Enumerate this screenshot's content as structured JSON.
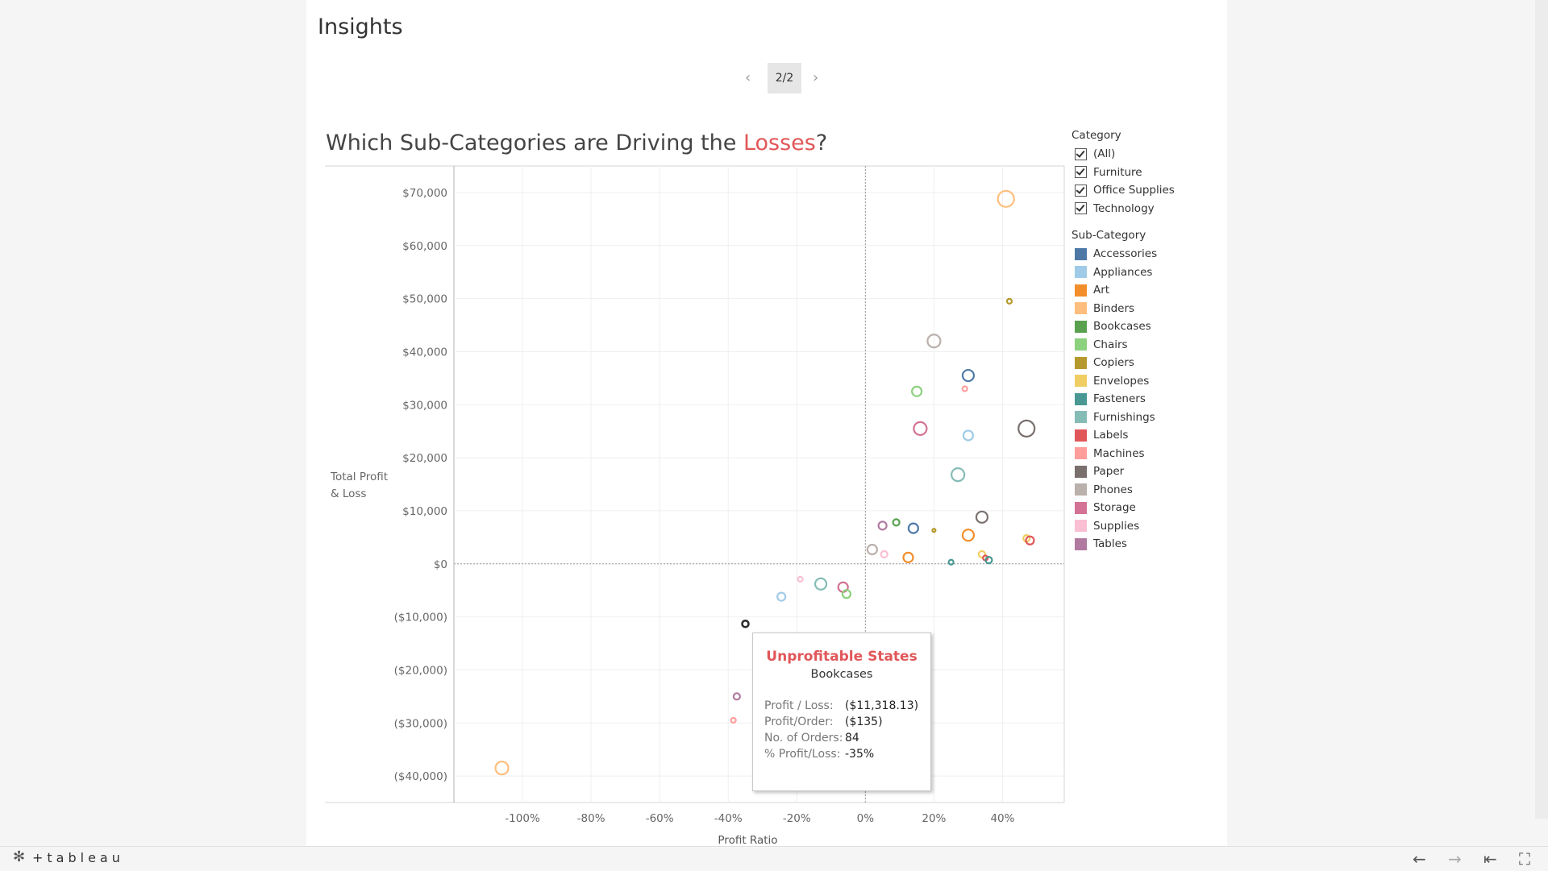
{
  "page_title": "Insights",
  "pager": {
    "prev_icon": "‹",
    "label": "2/2",
    "next_icon": "›"
  },
  "headline": {
    "prefix": "Which Sub-Categories are Driving the ",
    "highlight": "Losses",
    "suffix": "?"
  },
  "chart_data": {
    "type": "scatter",
    "xlabel": "Profit Ratio",
    "ylabel": [
      "Total Profit",
      "& Loss"
    ],
    "xlim": [
      -1.2,
      0.58
    ],
    "ylim": [
      -45000,
      75000
    ],
    "x_ticks": [
      -1.0,
      -0.8,
      -0.6,
      -0.4,
      -0.2,
      0,
      0.2,
      0.4
    ],
    "x_tick_labels": [
      "-100%",
      "-80%",
      "-60%",
      "-40%",
      "-20%",
      "0%",
      "20%",
      "40%"
    ],
    "y_ticks": [
      70000,
      60000,
      50000,
      40000,
      30000,
      20000,
      10000,
      0,
      -10000,
      -20000,
      -30000,
      -40000
    ],
    "y_tick_labels": [
      "$70,000",
      "$60,000",
      "$50,000",
      "$40,000",
      "$30,000",
      "$20,000",
      "$10,000",
      "$0",
      "($10,000)",
      "($20,000)",
      "($30,000)",
      "($40,000)"
    ],
    "points": [
      {
        "sub": "Binders",
        "x": 0.41,
        "y": 68800,
        "r": 10
      },
      {
        "sub": "Copiers",
        "x": 0.42,
        "y": 49500,
        "r": 3
      },
      {
        "sub": "Phones",
        "x": 0.2,
        "y": 42000,
        "r": 8
      },
      {
        "sub": "Accessories",
        "x": 0.3,
        "y": 35500,
        "r": 7
      },
      {
        "sub": "Machines",
        "x": 0.29,
        "y": 33000,
        "r": 3
      },
      {
        "sub": "Chairs",
        "x": 0.15,
        "y": 32500,
        "r": 6
      },
      {
        "sub": "Storage",
        "x": 0.16,
        "y": 25500,
        "r": 8
      },
      {
        "sub": "Paper",
        "x": 0.47,
        "y": 25500,
        "r": 10
      },
      {
        "sub": "Appliances",
        "x": 0.3,
        "y": 24200,
        "r": 6
      },
      {
        "sub": "Furnishings",
        "x": 0.27,
        "y": 16800,
        "r": 8
      },
      {
        "sub": "Paper",
        "x": 0.34,
        "y": 8800,
        "r": 7
      },
      {
        "sub": "Tables",
        "x": 0.05,
        "y": 7200,
        "r": 5
      },
      {
        "sub": "Bookcases",
        "x": 0.09,
        "y": 7800,
        "r": 4
      },
      {
        "sub": "Accessories",
        "x": 0.14,
        "y": 6700,
        "r": 6
      },
      {
        "sub": "Copiers",
        "x": 0.2,
        "y": 6300,
        "r": 2
      },
      {
        "sub": "Art",
        "x": 0.3,
        "y": 5400,
        "r": 7
      },
      {
        "sub": "Envelopes",
        "x": 0.47,
        "y": 4800,
        "r": 4
      },
      {
        "sub": "Labels",
        "x": 0.48,
        "y": 4400,
        "r": 5
      },
      {
        "sub": "Phones",
        "x": 0.02,
        "y": 2700,
        "r": 6
      },
      {
        "sub": "Supplies",
        "x": 0.055,
        "y": 1800,
        "r": 4
      },
      {
        "sub": "Art",
        "x": 0.125,
        "y": 1200,
        "r": 6
      },
      {
        "sub": "Envelopes",
        "x": 0.34,
        "y": 1800,
        "r": 4
      },
      {
        "sub": "Labels",
        "x": 0.35,
        "y": 1100,
        "r": 3
      },
      {
        "sub": "Fasteners",
        "x": 0.36,
        "y": 700,
        "r": 4
      },
      {
        "sub": "Fasteners",
        "x": 0.25,
        "y": 300,
        "r": 3
      },
      {
        "sub": "Supplies",
        "x": -0.19,
        "y": -2900,
        "r": 3
      },
      {
        "sub": "Furnishings",
        "x": -0.13,
        "y": -3800,
        "r": 7
      },
      {
        "sub": "Storage",
        "x": -0.065,
        "y": -4400,
        "r": 6
      },
      {
        "sub": "Chairs",
        "x": -0.055,
        "y": -5700,
        "r": 5
      },
      {
        "sub": "Appliances",
        "x": -0.245,
        "y": -6200,
        "r": 5
      },
      {
        "sub": "Bookcases",
        "x": -0.35,
        "y": -11318,
        "r": 4
      },
      {
        "sub": "Tables",
        "x": -0.375,
        "y": -25000,
        "r": 4
      },
      {
        "sub": "Machines",
        "x": -0.385,
        "y": -29500,
        "r": 3
      },
      {
        "sub": "Binders",
        "x": -1.06,
        "y": -38500,
        "r": 8
      }
    ]
  },
  "filters": {
    "category_title": "Category",
    "categories": [
      "(All)",
      "Furniture",
      "Office Supplies",
      "Technology"
    ],
    "subcategory_title": "Sub-Category",
    "subcategories": [
      {
        "name": "Accessories",
        "color": "#4e79a7"
      },
      {
        "name": "Appliances",
        "color": "#a0cbe8"
      },
      {
        "name": "Art",
        "color": "#f28e2b"
      },
      {
        "name": "Binders",
        "color": "#ffbe7d"
      },
      {
        "name": "Bookcases",
        "color": "#59a14f"
      },
      {
        "name": "Chairs",
        "color": "#8cd17d"
      },
      {
        "name": "Copiers",
        "color": "#b6992d"
      },
      {
        "name": "Envelopes",
        "color": "#f1ce63"
      },
      {
        "name": "Fasteners",
        "color": "#499894"
      },
      {
        "name": "Furnishings",
        "color": "#86bcb6"
      },
      {
        "name": "Labels",
        "color": "#e15759"
      },
      {
        "name": "Machines",
        "color": "#ff9d9a"
      },
      {
        "name": "Paper",
        "color": "#79706e"
      },
      {
        "name": "Phones",
        "color": "#bab0ac"
      },
      {
        "name": "Storage",
        "color": "#d37295"
      },
      {
        "name": "Supplies",
        "color": "#fabfd2"
      },
      {
        "name": "Tables",
        "color": "#b07aa1"
      }
    ]
  },
  "tooltip": {
    "title": "Unprofitable States",
    "subtitle": "Bookcases",
    "rows": [
      {
        "label": "Profit / Loss:",
        "value": "($11,318.13)"
      },
      {
        "label": "Profit/Order:",
        "value": "($135)"
      },
      {
        "label": "No. of Orders:",
        "value": "84"
      },
      {
        "label": "% Profit/Loss:",
        "value": "-35%"
      }
    ]
  },
  "footer": {
    "logo": "+tableau",
    "logo_icon": "sparkle-icon",
    "back_icon": "←",
    "forward_icon": "→",
    "first_icon": "⇤",
    "fullscreen_icon": "⛶"
  }
}
